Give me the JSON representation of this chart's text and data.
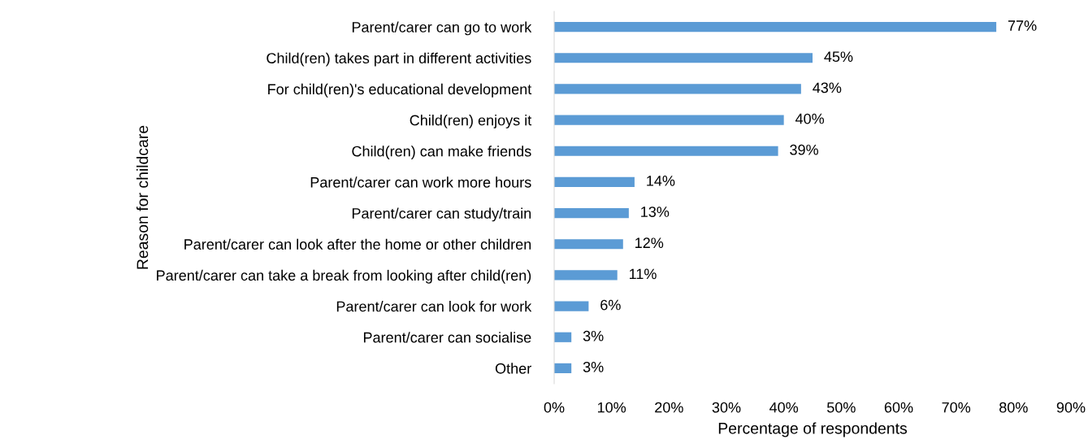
{
  "chart_data": {
    "type": "bar",
    "orientation": "horizontal",
    "ylabel": "Reason for childcare",
    "xlabel": "Percentage of respondents",
    "categories": [
      "Parent/carer can go to work",
      "Child(ren) takes part in different activities",
      "For child(ren)'s educational development",
      "Child(ren) enjoys it",
      "Child(ren) can make friends",
      "Parent/carer can work more hours",
      "Parent/carer can study/train",
      "Parent/carer can look after the home or other children",
      "Parent/carer can take a break from looking after child(ren)",
      "Parent/carer can look for work",
      "Parent/carer can socialise",
      "Other"
    ],
    "values": [
      77,
      45,
      43,
      40,
      39,
      14,
      13,
      12,
      11,
      6,
      3,
      3
    ],
    "value_labels": [
      "77%",
      "45%",
      "43%",
      "40%",
      "39%",
      "14%",
      "13%",
      "12%",
      "11%",
      "6%",
      "3%",
      "3%"
    ],
    "color": "#5b9bd5",
    "xlim": [
      0,
      90
    ],
    "xticks": [
      {
        "value": 0,
        "label": "0%"
      },
      {
        "value": 10,
        "label": "10%"
      },
      {
        "value": 20,
        "label": "20%"
      },
      {
        "value": 30,
        "label": "30%"
      },
      {
        "value": 40,
        "label": "40%"
      },
      {
        "value": 50,
        "label": "50%"
      },
      {
        "value": 60,
        "label": "60%"
      },
      {
        "value": 70,
        "label": "70%"
      },
      {
        "value": 80,
        "label": "80%"
      },
      {
        "value": 90,
        "label": "90%"
      }
    ],
    "grid": false,
    "legend": false
  }
}
